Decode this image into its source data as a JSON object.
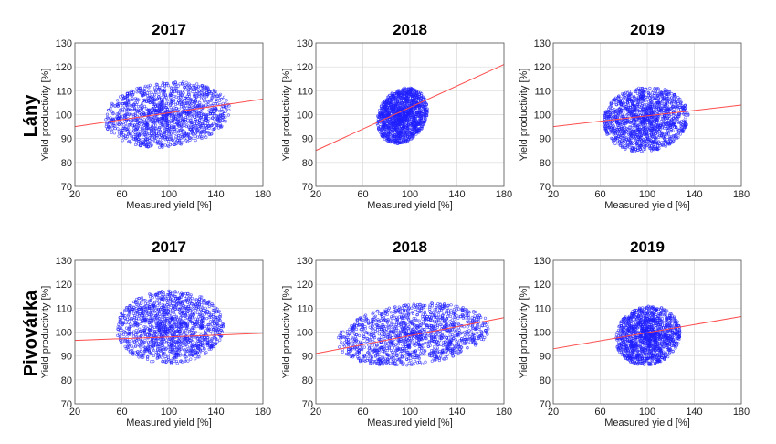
{
  "figure": {
    "rows": [
      {
        "label": "Lány"
      },
      {
        "label": "Pivovárka"
      }
    ]
  },
  "colors": {
    "points": "#1f1fff",
    "fit_line": "#ff4d4d",
    "grid": "#d9d9d9",
    "axes": "#555555"
  },
  "chart_data": [
    {
      "type": "scatter",
      "title": "2017",
      "row": "Lány",
      "xlabel": "Measured yield [%]",
      "ylabel": "Yield productivity [%]",
      "xlim": [
        20,
        180
      ],
      "ylim": [
        70,
        130
      ],
      "xticks": [
        20,
        60,
        100,
        140,
        180
      ],
      "yticks": [
        70,
        80,
        90,
        100,
        110,
        120,
        130
      ],
      "grid": true,
      "cloud": {
        "x_range": [
          45,
          152
        ],
        "y_range": [
          84,
          116
        ]
      },
      "fit_line": [
        [
          20,
          95
        ],
        [
          180,
          106.5
        ]
      ]
    },
    {
      "type": "scatter",
      "title": "2018",
      "row": "Lány",
      "xlabel": "Measured yield [%]",
      "ylabel": "Yield productivity [%]",
      "xlim": [
        20,
        180
      ],
      "ylim": [
        70,
        130
      ],
      "xticks": [
        20,
        60,
        100,
        140,
        180
      ],
      "yticks": [
        70,
        80,
        90,
        100,
        110,
        120,
        130
      ],
      "grid": true,
      "cloud": {
        "x_range": [
          72,
          115
        ],
        "y_range": [
          86,
          113
        ]
      },
      "fit_line": [
        [
          20,
          85
        ],
        [
          180,
          121
        ]
      ]
    },
    {
      "type": "scatter",
      "title": "2019",
      "row": "Lány",
      "xlabel": "Measured yield [%]",
      "ylabel": "Yield productivity [%]",
      "xlim": [
        20,
        180
      ],
      "ylim": [
        70,
        130
      ],
      "xticks": [
        20,
        60,
        100,
        140,
        180
      ],
      "yticks": [
        70,
        80,
        90,
        100,
        110,
        120,
        130
      ],
      "grid": true,
      "cloud": {
        "x_range": [
          62,
          135
        ],
        "y_range": [
          82,
          114
        ]
      },
      "fit_line": [
        [
          20,
          95
        ],
        [
          180,
          104
        ]
      ]
    },
    {
      "type": "scatter",
      "title": "2017",
      "row": "Pivovárka",
      "xlabel": "Measured yield [%]",
      "ylabel": "Yield productivity [%]",
      "xlim": [
        20,
        180
      ],
      "ylim": [
        70,
        130
      ],
      "xticks": [
        20,
        60,
        100,
        140,
        180
      ],
      "yticks": [
        70,
        80,
        90,
        100,
        110,
        120,
        130
      ],
      "grid": true,
      "cloud": {
        "x_range": [
          55,
          147
        ],
        "y_range": [
          84,
          120
        ]
      },
      "fit_line": [
        [
          20,
          96.5
        ],
        [
          180,
          99.5
        ]
      ]
    },
    {
      "type": "scatter",
      "title": "2018",
      "row": "Pivovárka",
      "xlabel": "Measured yield [%]",
      "ylabel": "Yield productivity [%]",
      "xlim": [
        20,
        180
      ],
      "ylim": [
        70,
        130
      ],
      "xticks": [
        20,
        60,
        100,
        140,
        180
      ],
      "yticks": [
        70,
        80,
        90,
        100,
        110,
        120,
        130
      ],
      "grid": true,
      "cloud": {
        "x_range": [
          38,
          168
        ],
        "y_range": [
          84,
          114
        ]
      },
      "fit_line": [
        [
          20,
          91
        ],
        [
          180,
          106
        ]
      ]
    },
    {
      "type": "scatter",
      "title": "2019",
      "row": "Pivovárka",
      "xlabel": "Measured yield [%]",
      "ylabel": "Yield productivity [%]",
      "xlim": [
        20,
        180
      ],
      "ylim": [
        70,
        130
      ],
      "xticks": [
        20,
        60,
        100,
        140,
        180
      ],
      "yticks": [
        70,
        80,
        90,
        100,
        110,
        120,
        130
      ],
      "grid": true,
      "cloud": {
        "x_range": [
          73,
          128
        ],
        "y_range": [
          84,
          113
        ]
      },
      "fit_line": [
        [
          20,
          93
        ],
        [
          180,
          106.5
        ]
      ]
    }
  ]
}
